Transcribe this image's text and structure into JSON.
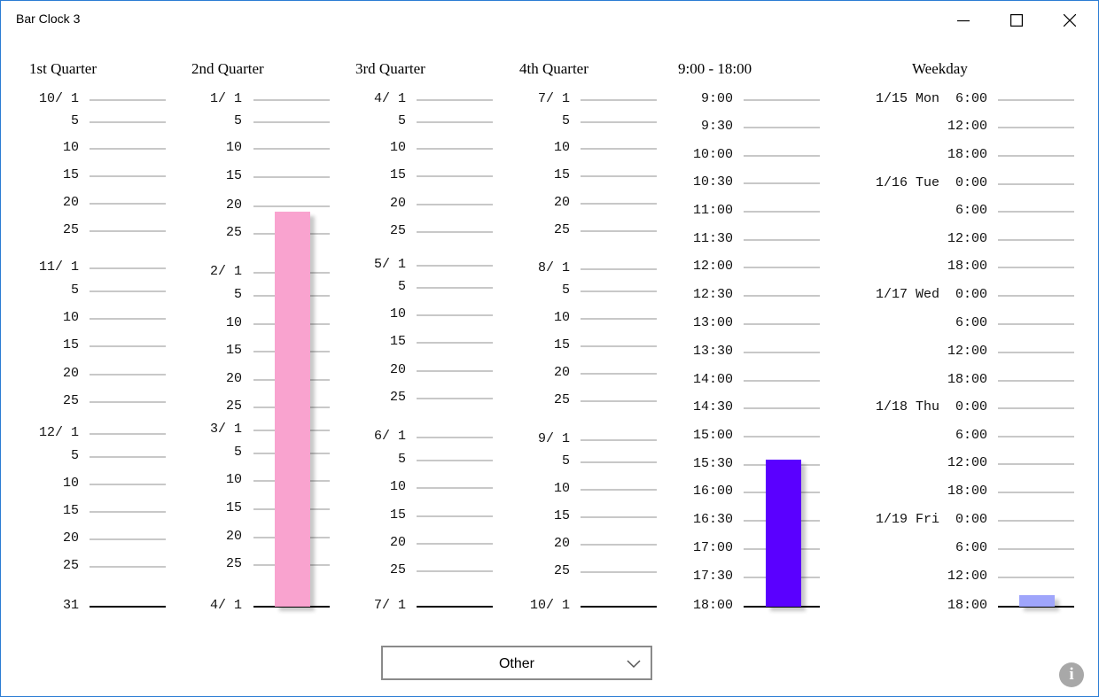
{
  "window": {
    "title": "Bar Clock 3"
  },
  "controls": {
    "minimize": "minimize-icon",
    "maximize": "maximize-icon",
    "close": "close-icon"
  },
  "columns": [
    {
      "id": "q1",
      "title": "1st Quarter",
      "labels": [
        "10/ 1",
        "5",
        "10",
        "15",
        "20",
        "25",
        "11/ 1",
        "5",
        "10",
        "15",
        "20",
        "25",
        "12/ 1",
        "5",
        "10",
        "15",
        "20",
        "25",
        "31"
      ]
    },
    {
      "id": "q2",
      "title": "2nd Quarter",
      "labels": [
        "1/ 1",
        "5",
        "10",
        "15",
        "20",
        "25",
        "2/ 1",
        "5",
        "10",
        "15",
        "20",
        "25",
        "3/ 1",
        "5",
        "10",
        "15",
        "20",
        "25",
        "4/ 1"
      ]
    },
    {
      "id": "q3",
      "title": "3rd Quarter",
      "labels": [
        "4/ 1",
        "5",
        "10",
        "15",
        "20",
        "25",
        "5/ 1",
        "5",
        "10",
        "15",
        "20",
        "25",
        "6/ 1",
        "5",
        "10",
        "15",
        "20",
        "25",
        "7/ 1"
      ]
    },
    {
      "id": "q4",
      "title": "4th Quarter",
      "labels": [
        "7/ 1",
        "5",
        "10",
        "15",
        "20",
        "25",
        "8/ 1",
        "5",
        "10",
        "15",
        "20",
        "25",
        "9/ 1",
        "5",
        "10",
        "15",
        "20",
        "25",
        "10/ 1"
      ]
    },
    {
      "id": "hours",
      "title": "9:00 - 18:00",
      "labels": [
        "9:00",
        "9:30",
        "10:00",
        "10:30",
        "11:00",
        "11:30",
        "12:00",
        "12:30",
        "13:00",
        "13:30",
        "14:00",
        "14:30",
        "15:00",
        "15:30",
        "16:00",
        "16:30",
        "17:00",
        "17:30",
        "18:00"
      ]
    },
    {
      "id": "weekday",
      "title": "Weekday",
      "labels": [
        "1/15 Mon  6:00",
        "12:00",
        "18:00",
        "1/16 Tue  0:00",
        "6:00",
        "12:00",
        "18:00",
        "1/17 Wed  0:00",
        "6:00",
        "12:00",
        "18:00",
        "1/18 Thu  0:00",
        "6:00",
        "12:00",
        "18:00",
        "1/19 Fri  0:00",
        "6:00",
        "12:00",
        "18:00"
      ]
    }
  ],
  "bars": [
    {
      "column": "q2",
      "color": "#f9a3cf",
      "level": 0.78
    },
    {
      "column": "hours",
      "color": "#5a00ff",
      "level": 0.29
    },
    {
      "column": "weekday",
      "color": "#9fa5fb",
      "level": 0.022
    }
  ],
  "dropdown": {
    "value": "Other",
    "icon": "chevron-down-icon"
  },
  "info": {
    "icon": "info-icon",
    "glyph": "i"
  }
}
